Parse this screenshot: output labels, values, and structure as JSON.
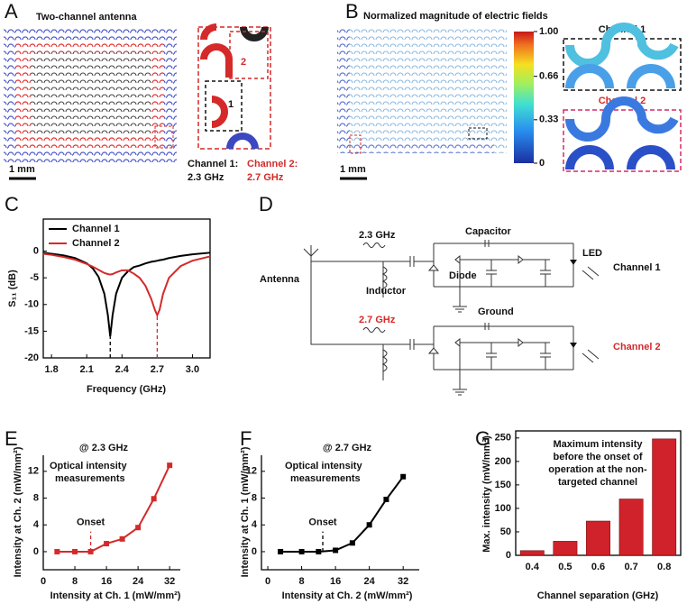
{
  "panel_labels": [
    "A",
    "B",
    "C",
    "D",
    "E",
    "F",
    "G"
  ],
  "panel_a": {
    "title": "Two-channel antenna",
    "scale_bar": "1 mm",
    "inset_labels": [
      "2",
      "1"
    ],
    "channel_1": [
      "Channel 1:",
      "2.3 GHz"
    ],
    "channel_2": [
      "Channel 2:",
      "2.7 GHz"
    ]
  },
  "panel_b": {
    "title": "Normalized magnitude of electric fields",
    "scale_bar": "1 mm",
    "colorbar_lim": [
      0,
      1
    ],
    "colorbar_ticks": [
      {
        "value": 1,
        "label": "1.00"
      },
      0.66,
      0.33,
      0
    ],
    "insets": [
      "Channel 1",
      "Channel 2"
    ]
  },
  "panel_d": {
    "antenna": "Antenna",
    "freq_1": "2.3 GHz",
    "freq_2": "2.7 GHz",
    "capacitor": "Capacitor",
    "diode": "Diode",
    "inductor": "Inductor",
    "ground": "Ground",
    "led": "LED",
    "channel_1": "Channel 1",
    "channel_2": "Channel 2"
  },
  "chart_data": [
    {
      "type": "line",
      "xlabel": "Frequency (GHz)",
      "ylabel": "S₁₁ (dB)",
      "box": true,
      "legend": "upper left",
      "x": [
        1.73,
        1.8,
        1.9,
        2.0,
        2.1,
        2.15,
        2.2,
        2.25,
        2.28,
        2.3,
        2.32,
        2.35,
        2.4,
        2.45,
        2.5,
        2.55,
        2.6,
        2.65,
        2.68,
        2.7,
        2.72,
        2.75,
        2.8,
        2.9,
        3.0,
        3.15
      ],
      "series": [
        {
          "name": "Channel 1",
          "color": "#000000",
          "values": [
            -0.3,
            -0.5,
            -0.8,
            -1.3,
            -2.3,
            -3.2,
            -4.8,
            -8,
            -12,
            -16,
            -12,
            -8,
            -5,
            -3.8,
            -3,
            -2.7,
            -2.3,
            -2,
            -1.9,
            -1.8,
            -1.7,
            -1.6,
            -1.3,
            -0.9,
            -0.6,
            -0.3
          ]
        },
        {
          "name": "Channel 2",
          "color": "#d42a2a",
          "values": [
            -0.5,
            -0.7,
            -1.1,
            -1.6,
            -2.4,
            -2.9,
            -3.5,
            -4.1,
            -4.3,
            -4.4,
            -4.3,
            -4,
            -3.6,
            -3.6,
            -4.2,
            -5,
            -6.5,
            -9,
            -11,
            -12,
            -11,
            -8,
            -5,
            -2.8,
            -1.8,
            -1
          ]
        }
      ],
      "dashed_lines": [
        {
          "x": 2.3,
          "y": -16,
          "color": "#000000"
        },
        {
          "x": 2.7,
          "y": -12,
          "color": "#d42a2a"
        }
      ],
      "xlim": [
        1.73,
        3.15
      ],
      "xticks": [
        1.8,
        2.1,
        2.4,
        2.7,
        {
          "value": 3,
          "label": "3.0"
        }
      ],
      "ylim": [
        -20,
        6
      ],
      "yticks": [
        0,
        -5,
        -10,
        -15,
        -20
      ]
    },
    {
      "type": "line",
      "title": "@ 2.3 GHz",
      "xlabel": "Intensity at Ch. 1 (mW/mm²)",
      "ylabel": "Intensity at Ch. 2 (mW/mm²)",
      "box": false,
      "markers": true,
      "note": [
        "Optical intensity",
        "measurements"
      ],
      "x": [
        3.5,
        8,
        12,
        16,
        20,
        24,
        28,
        32
      ],
      "series": [
        {
          "color": "#d42a2a",
          "values": [
            0,
            0,
            0,
            1.2,
            1.9,
            3.6,
            7.9,
            12.9
          ]
        }
      ],
      "onset": {
        "label": "Onset",
        "x": 12,
        "y": 3,
        "color": "#d42a2a"
      },
      "xlim": [
        0,
        34.7
      ],
      "xticks": [
        0,
        8,
        16,
        24,
        32
      ],
      "ylim": [
        -2.7,
        14.4
      ],
      "yticks": [
        0,
        4,
        8,
        12
      ]
    },
    {
      "type": "line",
      "title": "@ 2.7 GHz",
      "xlabel": "Intensity at Ch. 2 (mW/mm²)",
      "ylabel": "Intensity at Ch. 1 (mW/mm²)",
      "box": false,
      "markers": true,
      "note": [
        "Optical intensity",
        "measurements"
      ],
      "x": [
        3,
        8,
        12,
        16,
        20,
        24,
        28,
        32
      ],
      "series": [
        {
          "color": "#000000",
          "values": [
            0,
            0,
            0,
            0.2,
            1.3,
            4,
            7.8,
            11.2
          ]
        }
      ],
      "onset": {
        "label": "Onset",
        "x": 13,
        "y": 3,
        "color": "#000000"
      },
      "xlim": [
        -1.5,
        35.8
      ],
      "xticks": [
        0,
        8,
        16,
        24,
        32
      ],
      "ylim": [
        -2.7,
        14.4
      ],
      "yticks": [
        0,
        4,
        8,
        12
      ]
    },
    {
      "type": "bar",
      "xlabel": "Channel separation (GHz)",
      "ylabel": "Max. intensity (mW/mm²)",
      "box": true,
      "note": [
        "Maximum intensity",
        "before the onset of",
        "operation at the non-",
        "targeted channel"
      ],
      "categories": [
        "0.4",
        "0.5",
        "0.6",
        "0.7",
        "0.8"
      ],
      "values": [
        10,
        30,
        73,
        120,
        248
      ],
      "color": "#d0222a",
      "ylim": [
        0,
        265
      ],
      "yticks": [
        0,
        50,
        100,
        150,
        200,
        250
      ]
    }
  ]
}
